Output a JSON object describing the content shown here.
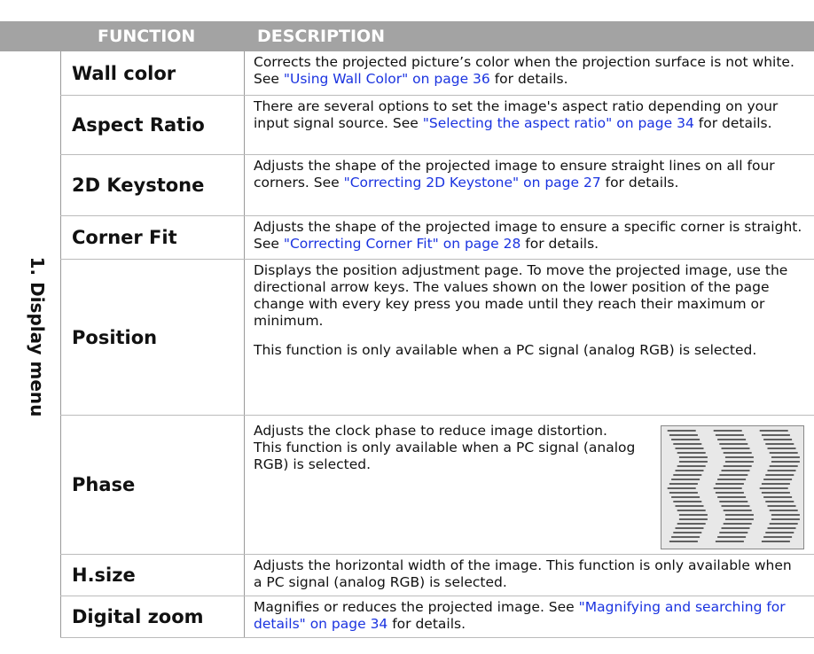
{
  "header": {
    "function": "FUNCTION",
    "description": "DESCRIPTION"
  },
  "section": "1. Display menu",
  "table": {
    "rows": [
      {
        "function": "Wall color",
        "description": [
          [
            {
              "text": "Corrects the projected picture’s color when the projection surface is not white. See "
            },
            {
              "link": "\"Using Wall Color\" on page 36"
            },
            {
              "text": " for details."
            }
          ]
        ]
      },
      {
        "function": "Aspect Ratio",
        "description": [
          [
            {
              "text": "There are several options to set the image's aspect ratio depending on your input signal source. See "
            },
            {
              "link": "\"Selecting the aspect ratio\" on page 34"
            },
            {
              "text": " for details."
            }
          ]
        ]
      },
      {
        "function": "2D Keystone",
        "description": [
          [
            {
              "text": "Adjusts the shape of the projected image to ensure straight lines on all four corners. See "
            },
            {
              "link": "\"Correcting 2D Keystone\" on page 27"
            },
            {
              "text": " for details."
            }
          ]
        ]
      },
      {
        "function": "Corner Fit",
        "description": [
          [
            {
              "text": "Adjusts the shape of the projected image to ensure a specific corner is straight. See "
            },
            {
              "link": "\"Correcting Corner Fit\" on page 28"
            },
            {
              "text": " for details."
            }
          ]
        ]
      },
      {
        "function": "Position",
        "description": [
          [
            {
              "text": "Displays the position adjustment page. To move the projected image, use the directional arrow keys. The values shown on the lower position of the page change with every key press you made until they reach their maximum or minimum."
            }
          ],
          [
            {
              "text": "This function is only available when a PC signal (analog RGB) is selected."
            }
          ]
        ]
      },
      {
        "function": "Phase",
        "description": [
          [
            {
              "text": "Adjusts the clock phase to reduce image distortion."
            }
          ],
          [
            {
              "text": "This function is only available when a PC signal (analog RGB) is selected."
            }
          ]
        ]
      },
      {
        "function": "H.size",
        "description": [
          [
            {
              "text": "Adjusts the horizontal width of the image. This function is only available when a PC signal (analog RGB) is selected."
            }
          ]
        ]
      },
      {
        "function": "Digital zoom",
        "description": [
          [
            {
              "text": "Magnifies or reduces the projected image. See "
            },
            {
              "link": "\"Magnifying and searching for details\" on page 34"
            },
            {
              "text": " for details."
            }
          ]
        ]
      }
    ]
  }
}
